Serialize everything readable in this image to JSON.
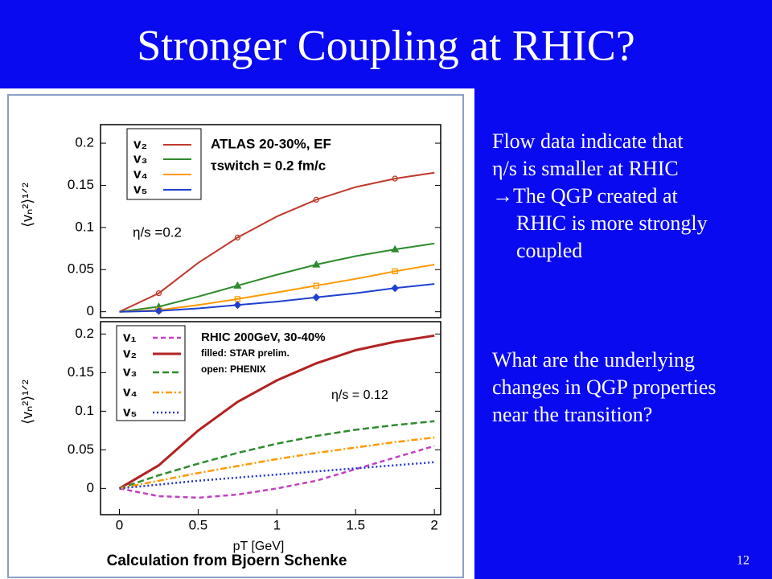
{
  "header": {
    "title": "Stronger Coupling at RHIC?"
  },
  "text": {
    "paragraph1": [
      "Flow data indicate that",
      "η/s is smaller at RHIC",
      "→The QGP created at",
      "RHIC is more strongly",
      "coupled"
    ],
    "paragraph2": [
      "What are the underlying",
      "changes in QGP properties",
      "near the transition?"
    ]
  },
  "figure_caption": "Calculation from Bjoern Schenke",
  "page_number": "12",
  "chart_data": [
    {
      "type": "line",
      "ylabel": "⟨vₙ²⟩¹ᐟ²",
      "annotations": [
        "ATLAS 20-30%, EF",
        "τswitch = 0.2 fm/c",
        "η/s =0.2"
      ],
      "x": [
        0,
        0.25,
        0.5,
        0.75,
        1,
        1.25,
        1.5,
        1.75,
        2
      ],
      "xlim": [
        -0.12,
        2.04
      ],
      "ylim": [
        -0.007,
        0.222
      ],
      "yticks": [
        0,
        0.05,
        0.1,
        0.15,
        0.2
      ],
      "series": [
        {
          "name": "v₂",
          "color": "#c0392b",
          "marker": "circle",
          "values": [
            0,
            0.022,
            0.058,
            0.088,
            0.113,
            0.133,
            0.148,
            0.158,
            0.165
          ]
        },
        {
          "name": "v₃",
          "color": "#2e8b2e",
          "marker": "triangle",
          "values": [
            0,
            0.006,
            0.018,
            0.031,
            0.044,
            0.056,
            0.066,
            0.074,
            0.081
          ]
        },
        {
          "name": "v₄",
          "color": "#ff9900",
          "marker": "square",
          "values": [
            0,
            0.002,
            0.008,
            0.015,
            0.023,
            0.031,
            0.039,
            0.048,
            0.056
          ]
        },
        {
          "name": "v₅",
          "color": "#2040d0",
          "marker": "diamond",
          "values": [
            0,
            0.001,
            0.004,
            0.008,
            0.012,
            0.017,
            0.022,
            0.028,
            0.033
          ]
        }
      ]
    },
    {
      "type": "line",
      "ylabel": "⟨vₙ²⟩¹ᐟ²",
      "xlabel": "pT [GeV]",
      "annotations": [
        "RHIC 200GeV, 30-40%",
        "filled: STAR prelim.",
        "open: PHENIX",
        "η/s = 0.12"
      ],
      "x": [
        0,
        0.25,
        0.5,
        0.75,
        1,
        1.25,
        1.5,
        1.75,
        2
      ],
      "xlim": [
        -0.12,
        2.04
      ],
      "ylim": [
        -0.034,
        0.216
      ],
      "xticks": [
        0,
        0.5,
        1,
        1.5,
        2
      ],
      "yticks": [
        0,
        0.05,
        0.1,
        0.15,
        0.2
      ],
      "series": [
        {
          "name": "v₁",
          "color": "#c040c0",
          "dash": "6 4",
          "values": [
            0,
            -0.01,
            -0.012,
            -0.008,
            0,
            0.01,
            0.025,
            0.04,
            0.055
          ]
        },
        {
          "name": "v₂",
          "color": "#b22222",
          "dash": "none",
          "values": [
            0,
            0.03,
            0.075,
            0.112,
            0.14,
            0.162,
            0.179,
            0.19,
            0.198
          ]
        },
        {
          "name": "v₃",
          "color": "#2e8b2e",
          "dash": "8 4",
          "values": [
            0,
            0.017,
            0.032,
            0.046,
            0.058,
            0.068,
            0.076,
            0.082,
            0.087
          ]
        },
        {
          "name": "v₄",
          "color": "#ff9900",
          "dash": "8 3 2 3",
          "values": [
            0,
            0.01,
            0.02,
            0.029,
            0.038,
            0.046,
            0.053,
            0.06,
            0.066
          ]
        },
        {
          "name": "v₅",
          "color": "#2233cc",
          "dash": "2 3",
          "values": [
            0,
            0.005,
            0.01,
            0.014,
            0.018,
            0.022,
            0.026,
            0.03,
            0.034
          ]
        }
      ]
    }
  ]
}
